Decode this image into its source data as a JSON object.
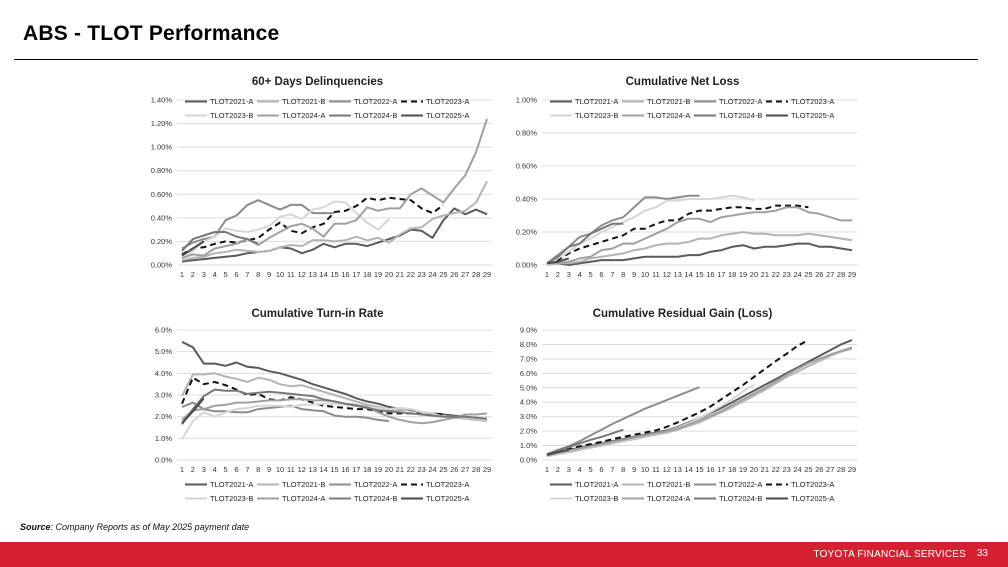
{
  "page": {
    "title": "ABS - TLOT Performance",
    "source_label": "Source",
    "source_text": ": Company Reports as of May 2025 payment date",
    "footer_brand": "TOYOTA FINANCIAL SERVICES",
    "page_number": "33"
  },
  "series_styles": {
    "TLOT2021-A": {
      "color": "#5a5a5a",
      "dash": false
    },
    "TLOT2021-B": {
      "color": "#b4b4b4",
      "dash": false
    },
    "TLOT2022-A": {
      "color": "#8c8c8c",
      "dash": false
    },
    "TLOT2023-A": {
      "color": "#111111",
      "dash": true
    },
    "TLOT2023-B": {
      "color": "#d6d6d6",
      "dash": false
    },
    "TLOT2024-A": {
      "color": "#a0a0a0",
      "dash": false
    },
    "TLOT2024-B": {
      "color": "#787878",
      "dash": false
    },
    "TLOT2025-A": {
      "color": "#4a4a4a",
      "dash": false
    }
  },
  "chart_data": [
    {
      "type": "line",
      "title": "60+ Days Delinquencies",
      "xlabel": "",
      "ylabel": "",
      "x": [
        1,
        2,
        3,
        4,
        5,
        6,
        7,
        8,
        9,
        10,
        11,
        12,
        13,
        14,
        15,
        16,
        17,
        18,
        19,
        20,
        21,
        22,
        23,
        24,
        25,
        26,
        27,
        28,
        29
      ],
      "ylim": [
        0,
        1.4
      ],
      "yticks": [
        0,
        0.2,
        0.4,
        0.6,
        0.8,
        1.0,
        1.2,
        1.4
      ],
      "ytick_labels": [
        "0.00%",
        "0.20%",
        "0.40%",
        "0.60%",
        "0.80%",
        "1.00%",
        "1.20%",
        "1.40%"
      ],
      "grid": true,
      "legend": "top",
      "series": [
        {
          "name": "TLOT2021-A",
          "values": [
            0.03,
            0.04,
            0.05,
            0.06,
            0.07,
            0.08,
            0.1,
            0.11,
            0.12,
            0.15,
            0.14,
            0.1,
            0.13,
            0.18,
            0.15,
            0.18,
            0.18,
            0.16,
            0.19,
            0.22,
            0.25,
            0.3,
            0.29,
            0.23,
            0.38,
            0.48,
            0.43,
            0.47,
            0.43
          ]
        },
        {
          "name": "TLOT2021-B",
          "values": [
            0.04,
            0.06,
            0.07,
            0.1,
            0.11,
            0.13,
            0.12,
            0.11,
            0.12,
            0.15,
            0.17,
            0.16,
            0.21,
            0.21,
            0.2,
            0.21,
            0.24,
            0.21,
            0.23,
            0.19,
            0.26,
            0.31,
            0.32,
            0.39,
            0.42,
            0.44,
            0.46,
            0.53,
            0.71
          ]
        },
        {
          "name": "TLOT2022-A",
          "values": [
            0.14,
            0.19,
            0.22,
            0.24,
            0.38,
            0.42,
            0.51,
            0.55,
            0.51,
            0.47,
            0.51,
            0.51,
            0.44,
            0.44,
            0.44
          ]
        },
        {
          "name": "TLOT2023-A",
          "values": [
            0.09,
            0.14,
            0.15,
            0.18,
            0.2,
            0.19,
            0.21,
            0.23,
            0.3,
            0.36,
            0.29,
            0.27,
            0.32,
            0.35,
            0.45,
            0.46,
            0.5,
            0.57,
            0.55,
            0.57,
            0.56,
            0.55,
            0.48,
            0.44,
            0.51
          ]
        },
        {
          "name": "TLOT2023-B",
          "values": [
            0.05,
            0.12,
            0.2,
            0.24,
            0.31,
            0.29,
            0.28,
            0.3,
            0.33,
            0.41,
            0.43,
            0.39,
            0.47,
            0.49,
            0.54,
            0.53,
            0.44,
            0.36,
            0.3,
            0.39
          ]
        },
        {
          "name": "TLOT2024-A",
          "values": [
            0.06,
            0.09,
            0.08,
            0.14,
            0.16,
            0.18,
            0.22,
            0.17,
            0.23,
            0.28,
            0.33,
            0.35,
            0.31,
            0.24,
            0.35,
            0.35,
            0.38,
            0.49,
            0.46,
            0.48,
            0.48,
            0.6,
            0.65,
            0.59,
            0.53,
            0.65,
            0.76,
            0.96,
            1.24
          ]
        },
        {
          "name": "TLOT2024-B",
          "values": [
            0.12,
            0.22,
            0.25,
            0.28,
            0.28,
            0.24,
            0.22,
            0.18
          ]
        },
        {
          "name": "TLOT2025-A",
          "values": [
            0.08,
            0.14,
            0.2
          ]
        }
      ]
    },
    {
      "type": "line",
      "title": "Cumulative Net Loss",
      "xlabel": "",
      "ylabel": "",
      "x": [
        1,
        2,
        3,
        4,
        5,
        6,
        7,
        8,
        9,
        10,
        11,
        12,
        13,
        14,
        15,
        16,
        17,
        18,
        19,
        20,
        21,
        22,
        23,
        24,
        25,
        26,
        27,
        28,
        29
      ],
      "ylim": [
        0,
        1.0
      ],
      "yticks": [
        0,
        0.2,
        0.4,
        0.6,
        0.8,
        1.0
      ],
      "ytick_labels": [
        "0.00%",
        "0.20%",
        "0.40%",
        "0.60%",
        "0.80%",
        "1.00%"
      ],
      "grid": true,
      "legend": "top",
      "series": [
        {
          "name": "TLOT2021-A",
          "values": [
            0.01,
            0.01,
            0.0,
            0.01,
            0.02,
            0.03,
            0.03,
            0.03,
            0.04,
            0.05,
            0.05,
            0.05,
            0.05,
            0.06,
            0.06,
            0.08,
            0.09,
            0.11,
            0.12,
            0.1,
            0.11,
            0.11,
            0.12,
            0.13,
            0.13,
            0.11,
            0.11,
            0.1,
            0.09
          ]
        },
        {
          "name": "TLOT2021-B",
          "values": [
            0.0,
            0.01,
            0.01,
            0.02,
            0.04,
            0.05,
            0.06,
            0.07,
            0.09,
            0.1,
            0.12,
            0.13,
            0.13,
            0.14,
            0.16,
            0.16,
            0.18,
            0.19,
            0.2,
            0.19,
            0.19,
            0.18,
            0.18,
            0.18,
            0.19,
            0.18,
            0.17,
            0.16,
            0.15
          ]
        },
        {
          "name": "TLOT2022-A",
          "values": [
            0.01,
            0.06,
            0.11,
            0.17,
            0.19,
            0.24,
            0.27,
            0.29,
            0.35,
            0.41,
            0.41,
            0.4,
            0.41,
            0.42,
            0.42
          ]
        },
        {
          "name": "TLOT2023-A",
          "values": [
            0.01,
            0.03,
            0.07,
            0.1,
            0.12,
            0.14,
            0.16,
            0.18,
            0.22,
            0.22,
            0.25,
            0.27,
            0.27,
            0.31,
            0.33,
            0.33,
            0.34,
            0.35,
            0.35,
            0.34,
            0.34,
            0.36,
            0.36,
            0.36,
            0.35
          ]
        },
        {
          "name": "TLOT2023-B",
          "values": [
            0.0,
            0.04,
            0.08,
            0.13,
            0.16,
            0.2,
            0.23,
            0.26,
            0.29,
            0.33,
            0.35,
            0.39,
            0.39,
            0.4,
            0.4,
            0.4,
            0.41,
            0.42,
            0.41,
            0.39
          ]
        },
        {
          "name": "TLOT2024-A",
          "values": [
            0.01,
            0.01,
            0.02,
            0.04,
            0.05,
            0.09,
            0.1,
            0.13,
            0.13,
            0.16,
            0.19,
            0.22,
            0.26,
            0.28,
            0.28,
            0.26,
            0.29,
            0.3,
            0.31,
            0.32,
            0.32,
            0.33,
            0.35,
            0.35,
            0.32,
            0.31,
            0.29,
            0.27,
            0.27
          ]
        },
        {
          "name": "TLOT2024-B",
          "values": [
            0.01,
            0.05,
            0.11,
            0.13,
            0.19,
            0.22,
            0.25,
            0.25
          ]
        },
        {
          "name": "TLOT2025-A",
          "values": [
            0.01,
            0.02,
            0.04
          ]
        }
      ]
    },
    {
      "type": "line",
      "title": "Cumulative Turn-in Rate",
      "xlabel": "",
      "ylabel": "",
      "x": [
        1,
        2,
        3,
        4,
        5,
        6,
        7,
        8,
        9,
        10,
        11,
        12,
        13,
        14,
        15,
        16,
        17,
        18,
        19,
        20,
        21,
        22,
        23,
        24,
        25,
        26,
        27,
        28,
        29
      ],
      "ylim": [
        0,
        6.0
      ],
      "yticks": [
        0,
        1,
        2,
        3,
        4,
        5,
        6
      ],
      "ytick_labels": [
        "0.0%",
        "1.0%",
        "2.0%",
        "3.0%",
        "4.0%",
        "5.0%",
        "6.0%"
      ],
      "grid": true,
      "legend": "bottom",
      "series": [
        {
          "name": "TLOT2021-A",
          "values": [
            5.45,
            5.2,
            4.45,
            4.45,
            4.35,
            4.5,
            4.3,
            4.25,
            4.1,
            4.0,
            3.85,
            3.7,
            3.5,
            3.35,
            3.2,
            3.05,
            2.85,
            2.7,
            2.6,
            2.45,
            2.35,
            2.3,
            2.2,
            2.15,
            2.1,
            2.05,
            2.0,
            1.95,
            1.9
          ]
        },
        {
          "name": "TLOT2021-B",
          "values": [
            2.95,
            3.95,
            3.95,
            4.0,
            3.85,
            3.75,
            3.6,
            3.8,
            3.7,
            3.5,
            3.4,
            3.45,
            3.3,
            3.15,
            3.0,
            2.85,
            2.7,
            2.55,
            2.45,
            2.35,
            2.3,
            2.35,
            2.2,
            2.1,
            2.05,
            1.95,
            1.9,
            1.85,
            1.8
          ]
        },
        {
          "name": "TLOT2022-A",
          "values": [
            2.45,
            2.65,
            2.35,
            2.25,
            2.25,
            2.2,
            2.2,
            2.35,
            2.4,
            2.45,
            2.5,
            2.35,
            2.3,
            2.25,
            2.05,
            2.0,
            2.0,
            1.95,
            1.85,
            1.8
          ]
        },
        {
          "name": "TLOT2023-A",
          "values": [
            2.6,
            3.8,
            3.5,
            3.6,
            3.45,
            3.25,
            3.0,
            3.05,
            2.8,
            2.75,
            2.9,
            2.8,
            2.65,
            2.5,
            2.45,
            2.4,
            2.35,
            2.35,
            2.25,
            2.15,
            2.15,
            2.15,
            2.15,
            2.15,
            2.1
          ]
        },
        {
          "name": "TLOT2023-B",
          "values": [
            0.95,
            1.8,
            2.2,
            2.0,
            2.2,
            2.35,
            2.4,
            2.5,
            2.5,
            2.5,
            2.45,
            2.55,
            2.55,
            2.6,
            2.6,
            2.55,
            2.5,
            2.45,
            2.4,
            2.35,
            2.4,
            2.35,
            2.2,
            2.15,
            2.0,
            2.0,
            1.95,
            1.9,
            1.85
          ]
        },
        {
          "name": "TLOT2024-A",
          "values": [
            1.85,
            2.3,
            2.35,
            2.5,
            2.55,
            2.65,
            2.65,
            2.7,
            2.75,
            2.75,
            2.8,
            2.8,
            2.75,
            2.75,
            2.7,
            2.6,
            2.55,
            2.45,
            2.2,
            2.0,
            1.85,
            1.75,
            1.7,
            1.75,
            1.85,
            1.95,
            2.1,
            2.1,
            2.15
          ]
        },
        {
          "name": "TLOT2024-B",
          "values": [
            1.65,
            2.35,
            2.95,
            3.25,
            3.2,
            3.2,
            3.05,
            3.1,
            3.15,
            3.1,
            3.05,
            3.0,
            2.95,
            2.8,
            2.7,
            2.6,
            2.5,
            2.4,
            2.3,
            2.25,
            2.2,
            2.15,
            2.1,
            2.05,
            2.0,
            2.0,
            2.0,
            1.95,
            1.9
          ]
        },
        {
          "name": "TLOT2025-A",
          "values": [
            1.7,
            2.25,
            2.85
          ]
        }
      ]
    },
    {
      "type": "line",
      "title": "Cumulative Residual Gain (Loss)",
      "xlabel": "",
      "ylabel": "",
      "x": [
        1,
        2,
        3,
        4,
        5,
        6,
        7,
        8,
        9,
        10,
        11,
        12,
        13,
        14,
        15,
        16,
        17,
        18,
        19,
        20,
        21,
        22,
        23,
        24,
        25,
        26,
        27,
        28,
        29
      ],
      "ylim": [
        0,
        9.0
      ],
      "yticks": [
        0,
        1,
        2,
        3,
        4,
        5,
        6,
        7,
        8,
        9
      ],
      "ytick_labels": [
        "0.0%",
        "1.0%",
        "2.0%",
        "3.0%",
        "4.0%",
        "5.0%",
        "6.0%",
        "7.0%",
        "8.0%",
        "9.0%"
      ],
      "grid": true,
      "legend": "bottom",
      "series": [
        {
          "name": "TLOT2021-A",
          "values": [
            0.3,
            0.5,
            0.7,
            0.85,
            1.0,
            1.15,
            1.3,
            1.45,
            1.6,
            1.75,
            1.9,
            2.05,
            2.3,
            2.6,
            2.9,
            3.25,
            3.6,
            4.0,
            4.4,
            4.8,
            5.2,
            5.6,
            6.0,
            6.4,
            6.8,
            7.2,
            7.6,
            8.0,
            8.3
          ]
        },
        {
          "name": "TLOT2021-B",
          "values": [
            0.25,
            0.4,
            0.55,
            0.7,
            0.85,
            1.0,
            1.15,
            1.3,
            1.45,
            1.6,
            1.75,
            1.9,
            2.1,
            2.35,
            2.6,
            2.95,
            3.3,
            3.65,
            4.05,
            4.45,
            4.85,
            5.3,
            5.75,
            6.1,
            6.5,
            6.85,
            7.2,
            7.5,
            7.7
          ]
        },
        {
          "name": "TLOT2022-A",
          "values": [
            0.4,
            0.7,
            0.95,
            1.3,
            1.7,
            2.1,
            2.5,
            2.85,
            3.2,
            3.55,
            3.85,
            4.15,
            4.45,
            4.75,
            5.05
          ]
        },
        {
          "name": "TLOT2023-A",
          "values": [
            0.35,
            0.55,
            0.75,
            0.95,
            1.1,
            1.25,
            1.45,
            1.6,
            1.75,
            1.9,
            2.05,
            2.3,
            2.6,
            2.95,
            3.3,
            3.7,
            4.2,
            4.7,
            5.2,
            5.75,
            6.3,
            6.85,
            7.35,
            7.9,
            8.3
          ]
        },
        {
          "name": "TLOT2023-B",
          "values": [
            0.25,
            0.45,
            0.6,
            0.75,
            0.9,
            1.05,
            1.2,
            1.35,
            1.5,
            1.65,
            1.8,
            2.0,
            2.25,
            2.55,
            2.9,
            3.3,
            3.75,
            4.2,
            4.75,
            5.2
          ]
        },
        {
          "name": "TLOT2024-A",
          "values": [
            0.3,
            0.5,
            0.65,
            0.8,
            0.95,
            1.1,
            1.25,
            1.4,
            1.55,
            1.7,
            1.85,
            2.0,
            2.2,
            2.45,
            2.75,
            3.05,
            3.4,
            3.8,
            4.2,
            4.6,
            5.0,
            5.45,
            5.9,
            6.3,
            6.7,
            7.0,
            7.3,
            7.55,
            7.8
          ]
        },
        {
          "name": "TLOT2024-B",
          "values": [
            0.4,
            0.65,
            0.9,
            1.15,
            1.4,
            1.6,
            1.85,
            2.1
          ]
        },
        {
          "name": "TLOT2025-A",
          "values": [
            0.35,
            0.55,
            0.7
          ]
        }
      ]
    }
  ]
}
